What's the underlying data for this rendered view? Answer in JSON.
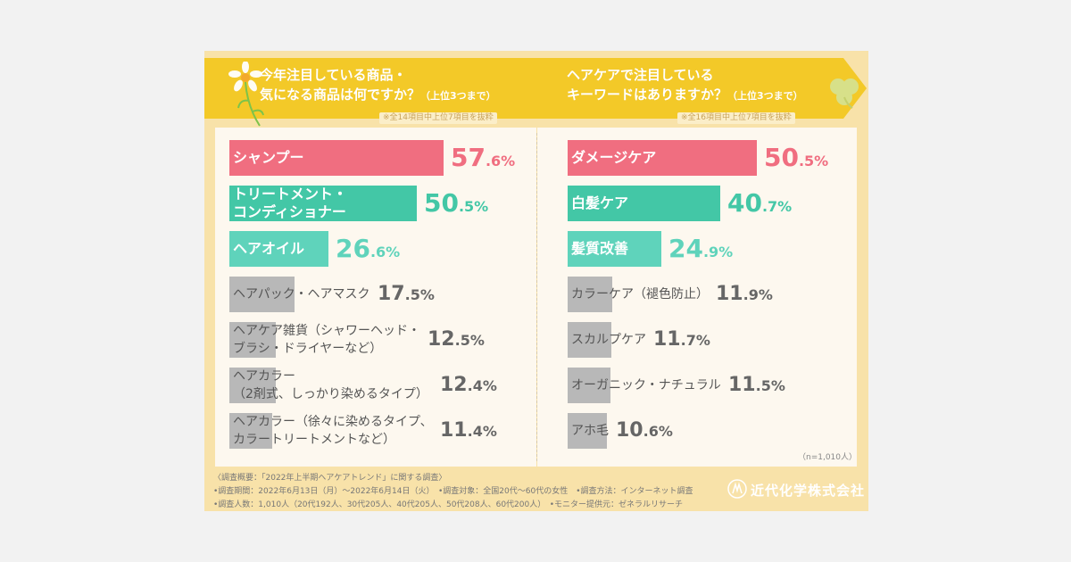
{
  "colors": {
    "pink": "#f06e80",
    "green": "#43c7a6",
    "mint": "#5fd3bb",
    "gray": "#b8b8b8"
  },
  "questions": [
    {
      "line1": "今年注目している商品・",
      "line2": "気になる商品は何ですか？",
      "sub": "（上位3つまで）",
      "note": "※全14項目中上位7項目を抜粋"
    },
    {
      "line1": "ヘアケアで注目している",
      "line2": "キーワードはありますか？",
      "sub": "（上位3つまで）",
      "note": "※全16項目中上位7項目を抜粋"
    }
  ],
  "chart_data": [
    {
      "type": "bar",
      "orientation": "horizontal",
      "categories": [
        "シャンプー",
        "トリートメント・コンディショナー",
        "ヘアオイル",
        "ヘアパック・ヘアマスク",
        "ヘアケア雑貨（シャワーヘッド・ブラシ・ドライヤーなど）",
        "ヘアカラー（2剤式、しっかり染めるタイプ）",
        "ヘアカラー（徐々に染めるタイプ、カラートリートメントなど）"
      ],
      "label_lines": [
        [
          "シャンプー"
        ],
        [
          "トリートメント・",
          "コンディショナー"
        ],
        [
          "ヘアオイル"
        ],
        [
          "ヘアパック・ヘアマスク"
        ],
        [
          "ヘアケア雑貨（シャワーヘッド・",
          "ブラシ・ドライヤーなど）"
        ],
        [
          "ヘアカラー",
          "（2剤式、しっかり染めるタイプ）"
        ],
        [
          "ヘアカラー（徐々に染めるタイプ、",
          "カラートリートメントなど）"
        ]
      ],
      "values": [
        57.6,
        50.5,
        26.6,
        17.5,
        12.5,
        12.4,
        11.4
      ],
      "unit": "%"
    },
    {
      "type": "bar",
      "orientation": "horizontal",
      "categories": [
        "ダメージケア",
        "白髪ケア",
        "髪質改善",
        "カラーケア（褪色防止）",
        "スカルプケア",
        "オーガニック・ナチュラル",
        "アホ毛"
      ],
      "label_lines": [
        [
          "ダメージケア"
        ],
        [
          "白髪ケア"
        ],
        [
          "髪質改善"
        ],
        [
          "カラーケア（褪色防止）"
        ],
        [
          "スカルプケア"
        ],
        [
          "オーガニック・ナチュラル"
        ],
        [
          "アホ毛"
        ]
      ],
      "values": [
        50.5,
        40.7,
        24.9,
        11.9,
        11.7,
        11.5,
        10.6
      ],
      "unit": "%",
      "n_note": "（n=1,010人）"
    }
  ],
  "footer": {
    "line1": "〈調査概要：「2022年上半期ヘアケアトレンド」に関する調査〉",
    "line2": "•調査期間：2022年6月13日（月）～2022年6月14日（火）　•調査対象：全国20代～60代の女性　•調査方法：インターネット調査",
    "line3": "•調査人数：1,010人（20代192人、30代205人、40代205人、50代208人、60代200人）　•モニター提供元：ゼネラルリサーチ",
    "company": "近代化学株式会社"
  }
}
